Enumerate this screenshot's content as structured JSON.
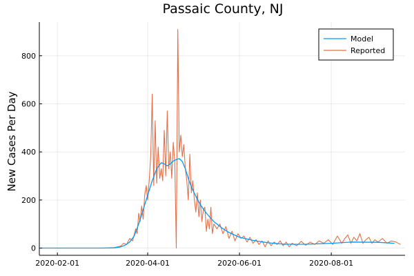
{
  "chart_data": {
    "type": "line",
    "title": "Passaic County, NJ",
    "xlabel": "",
    "ylabel": "New Cases Per Day",
    "x_type": "date",
    "xlim": [
      "2020-01-20",
      "2020-09-19"
    ],
    "ylim": [
      -30,
      940
    ],
    "x_ticks": [
      "2020-02-01",
      "2020-04-01",
      "2020-06-01",
      "2020-08-01"
    ],
    "y_ticks": [
      0,
      200,
      400,
      600,
      800
    ],
    "grid": true,
    "legend": "top-right",
    "series": [
      {
        "name": "Model",
        "color": "#009AFA",
        "points": [
          [
            "2020-01-21",
            0
          ],
          [
            "2020-02-15",
            0
          ],
          [
            "2020-03-01",
            0
          ],
          [
            "2020-03-10",
            1
          ],
          [
            "2020-03-14",
            5
          ],
          [
            "2020-03-17",
            12
          ],
          [
            "2020-03-20",
            25
          ],
          [
            "2020-03-23",
            50
          ],
          [
            "2020-03-26",
            100
          ],
          [
            "2020-03-29",
            160
          ],
          [
            "2020-04-01",
            220
          ],
          [
            "2020-04-04",
            280
          ],
          [
            "2020-04-07",
            330
          ],
          [
            "2020-04-10",
            355
          ],
          [
            "2020-04-12",
            350
          ],
          [
            "2020-04-14",
            342
          ],
          [
            "2020-04-16",
            350
          ],
          [
            "2020-04-18",
            362
          ],
          [
            "2020-04-20",
            368
          ],
          [
            "2020-04-22",
            372
          ],
          [
            "2020-04-24",
            360
          ],
          [
            "2020-04-26",
            330
          ],
          [
            "2020-04-28",
            290
          ],
          [
            "2020-04-30",
            255
          ],
          [
            "2020-05-03",
            215
          ],
          [
            "2020-05-06",
            180
          ],
          [
            "2020-05-10",
            145
          ],
          [
            "2020-05-15",
            110
          ],
          [
            "2020-05-20",
            85
          ],
          [
            "2020-05-25",
            65
          ],
          [
            "2020-06-01",
            45
          ],
          [
            "2020-06-10",
            32
          ],
          [
            "2020-06-20",
            22
          ],
          [
            "2020-07-01",
            16
          ],
          [
            "2020-07-15",
            16
          ],
          [
            "2020-08-01",
            20
          ],
          [
            "2020-08-15",
            25
          ],
          [
            "2020-09-01",
            24
          ],
          [
            "2020-09-12",
            20
          ]
        ]
      },
      {
        "name": "Reported",
        "color": "#E26F46",
        "points": [
          [
            "2020-01-21",
            0
          ],
          [
            "2020-02-15",
            0
          ],
          [
            "2020-03-05",
            0
          ],
          [
            "2020-03-10",
            2
          ],
          [
            "2020-03-14",
            8
          ],
          [
            "2020-03-16",
            20
          ],
          [
            "2020-03-18",
            15
          ],
          [
            "2020-03-20",
            40
          ],
          [
            "2020-03-22",
            30
          ],
          [
            "2020-03-24",
            80
          ],
          [
            "2020-03-25",
            60
          ],
          [
            "2020-03-26",
            145
          ],
          [
            "2020-03-27",
            110
          ],
          [
            "2020-03-28",
            175
          ],
          [
            "2020-03-29",
            120
          ],
          [
            "2020-03-30",
            220
          ],
          [
            "2020-03-31",
            260
          ],
          [
            "2020-04-01",
            200
          ],
          [
            "2020-04-02",
            280
          ],
          [
            "2020-04-03",
            380
          ],
          [
            "2020-04-04",
            640
          ],
          [
            "2020-04-05",
            260
          ],
          [
            "2020-04-06",
            530
          ],
          [
            "2020-04-07",
            270
          ],
          [
            "2020-04-08",
            420
          ],
          [
            "2020-04-09",
            290
          ],
          [
            "2020-04-10",
            330
          ],
          [
            "2020-04-11",
            280
          ],
          [
            "2020-04-12",
            490
          ],
          [
            "2020-04-13",
            300
          ],
          [
            "2020-04-14",
            570
          ],
          [
            "2020-04-15",
            330
          ],
          [
            "2020-04-16",
            400
          ],
          [
            "2020-04-17",
            290
          ],
          [
            "2020-04-18",
            440
          ],
          [
            "2020-04-19",
            360
          ],
          [
            "2020-04-20",
            0
          ],
          [
            "2020-04-21",
            910
          ],
          [
            "2020-04-22",
            400
          ],
          [
            "2020-04-23",
            470
          ],
          [
            "2020-04-24",
            380
          ],
          [
            "2020-04-25",
            430
          ],
          [
            "2020-04-26",
            330
          ],
          [
            "2020-04-27",
            280
          ],
          [
            "2020-04-28",
            200
          ],
          [
            "2020-04-29",
            390
          ],
          [
            "2020-04-30",
            230
          ],
          [
            "2020-05-01",
            280
          ],
          [
            "2020-05-02",
            200
          ],
          [
            "2020-05-03",
            150
          ],
          [
            "2020-05-04",
            230
          ],
          [
            "2020-05-05",
            130
          ],
          [
            "2020-05-06",
            200
          ],
          [
            "2020-05-07",
            110
          ],
          [
            "2020-05-08",
            160
          ],
          [
            "2020-05-09",
            170
          ],
          [
            "2020-05-10",
            70
          ],
          [
            "2020-05-11",
            120
          ],
          [
            "2020-05-12",
            80
          ],
          [
            "2020-05-13",
            170
          ],
          [
            "2020-05-14",
            60
          ],
          [
            "2020-05-15",
            100
          ],
          [
            "2020-05-17",
            80
          ],
          [
            "2020-05-19",
            100
          ],
          [
            "2020-05-21",
            60
          ],
          [
            "2020-05-23",
            90
          ],
          [
            "2020-05-25",
            40
          ],
          [
            "2020-05-27",
            70
          ],
          [
            "2020-05-29",
            30
          ],
          [
            "2020-05-31",
            60
          ],
          [
            "2020-06-02",
            40
          ],
          [
            "2020-06-04",
            50
          ],
          [
            "2020-06-06",
            25
          ],
          [
            "2020-06-08",
            45
          ],
          [
            "2020-06-10",
            20
          ],
          [
            "2020-06-12",
            35
          ],
          [
            "2020-06-14",
            15
          ],
          [
            "2020-06-16",
            30
          ],
          [
            "2020-06-18",
            5
          ],
          [
            "2020-06-20",
            30
          ],
          [
            "2020-06-22",
            10
          ],
          [
            "2020-06-24",
            25
          ],
          [
            "2020-06-26",
            15
          ],
          [
            "2020-06-28",
            30
          ],
          [
            "2020-06-30",
            10
          ],
          [
            "2020-07-02",
            25
          ],
          [
            "2020-07-04",
            5
          ],
          [
            "2020-07-06",
            20
          ],
          [
            "2020-07-09",
            10
          ],
          [
            "2020-07-12",
            28
          ],
          [
            "2020-07-15",
            12
          ],
          [
            "2020-07-18",
            25
          ],
          [
            "2020-07-21",
            15
          ],
          [
            "2020-07-24",
            30
          ],
          [
            "2020-07-27",
            20
          ],
          [
            "2020-07-30",
            35
          ],
          [
            "2020-08-02",
            15
          ],
          [
            "2020-08-05",
            50
          ],
          [
            "2020-08-08",
            20
          ],
          [
            "2020-08-10",
            40
          ],
          [
            "2020-08-12",
            55
          ],
          [
            "2020-08-14",
            20
          ],
          [
            "2020-08-16",
            45
          ],
          [
            "2020-08-18",
            30
          ],
          [
            "2020-08-20",
            60
          ],
          [
            "2020-08-22",
            20
          ],
          [
            "2020-08-24",
            35
          ],
          [
            "2020-08-26",
            45
          ],
          [
            "2020-08-28",
            20
          ],
          [
            "2020-08-30",
            35
          ],
          [
            "2020-09-01",
            25
          ],
          [
            "2020-09-04",
            40
          ],
          [
            "2020-09-07",
            20
          ],
          [
            "2020-09-10",
            30
          ],
          [
            "2020-09-13",
            25
          ],
          [
            "2020-09-16",
            15
          ]
        ]
      }
    ]
  }
}
